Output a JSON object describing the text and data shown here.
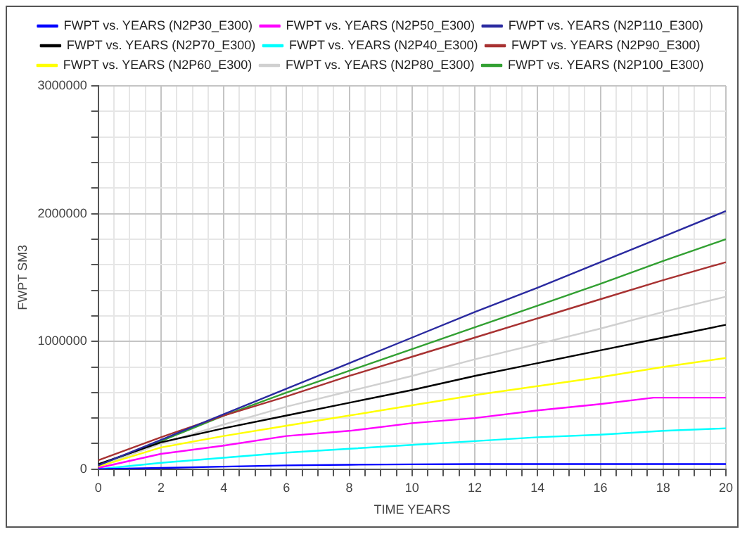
{
  "chart_data": {
    "type": "line",
    "xlabel": "TIME YEARS",
    "ylabel": "FWPT SM3",
    "xlim": [
      0,
      20
    ],
    "ylim": [
      0,
      3000000
    ],
    "xticks": [
      0,
      {
        "value": 0.5,
        "label": null
      },
      {
        "value": 1,
        "label": null
      },
      {
        "value": 1.5,
        "label": null
      },
      2,
      {
        "value": 2.5,
        "label": null
      },
      {
        "value": 3,
        "label": null
      },
      {
        "value": 3.5,
        "label": null
      },
      4,
      {
        "value": 4.5,
        "label": null
      },
      {
        "value": 5,
        "label": null
      },
      {
        "value": 5.5,
        "label": null
      },
      6,
      {
        "value": 6.5,
        "label": null
      },
      {
        "value": 7,
        "label": null
      },
      {
        "value": 7.5,
        "label": null
      },
      8,
      {
        "value": 8.5,
        "label": null
      },
      {
        "value": 9,
        "label": null
      },
      {
        "value": 9.5,
        "label": null
      },
      10,
      {
        "value": 10.5,
        "label": null
      },
      {
        "value": 11,
        "label": null
      },
      {
        "value": 11.5,
        "label": null
      },
      12,
      {
        "value": 12.5,
        "label": null
      },
      {
        "value": 13,
        "label": null
      },
      {
        "value": 13.5,
        "label": null
      },
      14,
      {
        "value": 14.5,
        "label": null
      },
      {
        "value": 15,
        "label": null
      },
      {
        "value": 15.5,
        "label": null
      },
      16,
      {
        "value": 16.5,
        "label": null
      },
      {
        "value": 17,
        "label": null
      },
      {
        "value": 17.5,
        "label": null
      },
      18,
      {
        "value": 18.5,
        "label": null
      },
      {
        "value": 19,
        "label": null
      },
      {
        "value": 19.5,
        "label": null
      },
      20
    ],
    "yticks": [
      0,
      {
        "value": 200000,
        "label": null
      },
      {
        "value": 400000,
        "label": null
      },
      {
        "value": 600000,
        "label": null
      },
      {
        "value": 800000,
        "label": null
      },
      1000000,
      {
        "value": 1200000,
        "label": null
      },
      {
        "value": 1400000,
        "label": null
      },
      {
        "value": 1600000,
        "label": null
      },
      {
        "value": 1800000,
        "label": null
      },
      2000000,
      {
        "value": 2200000,
        "label": null
      },
      {
        "value": 2400000,
        "label": null
      },
      {
        "value": 2600000,
        "label": null
      },
      {
        "value": 2800000,
        "label": null
      },
      3000000
    ],
    "grid": true,
    "legend": "top",
    "marker": "none",
    "line_style": "solid",
    "x": [
      0,
      2,
      4,
      6,
      8,
      10,
      12,
      14,
      16,
      18,
      20
    ],
    "series": [
      {
        "name": "FWPT vs. YEARS (N2P30_E300)",
        "color": "#0000ff",
        "values": [
          0,
          10000,
          20000,
          30000,
          35000,
          38000,
          40000,
          40000,
          40000,
          40000,
          40000
        ]
      },
      {
        "name": "FWPT vs. YEARS (N2P50_E300)",
        "color": "#ff00ff",
        "x": [
          0,
          2,
          4,
          6,
          8,
          10,
          12,
          14,
          16,
          17.7,
          20
        ],
        "values": [
          10000,
          120000,
          185000,
          260000,
          300000,
          360000,
          400000,
          460000,
          510000,
          560000,
          560000
        ]
      },
      {
        "name": "FWPT vs. YEARS (N2P110_E300)",
        "color": "#2a2aa0",
        "values": [
          30000,
          230000,
          430000,
          630000,
          830000,
          1030000,
          1230000,
          1420000,
          1620000,
          1820000,
          2020000
        ]
      },
      {
        "name": "FWPT vs. YEARS (N2P70_E300)",
        "color": "#000000",
        "values": [
          40000,
          210000,
          320000,
          420000,
          520000,
          620000,
          730000,
          830000,
          930000,
          1030000,
          1130000
        ]
      },
      {
        "name": "FWPT vs. YEARS (N2P40_E300)",
        "color": "#00ffff",
        "values": [
          0,
          50000,
          90000,
          130000,
          160000,
          190000,
          220000,
          250000,
          270000,
          300000,
          320000
        ]
      },
      {
        "name": "FWPT vs. YEARS (N2P90_E300)",
        "color": "#a83232",
        "values": [
          70000,
          250000,
          420000,
          570000,
          730000,
          880000,
          1030000,
          1180000,
          1330000,
          1480000,
          1620000
        ]
      },
      {
        "name": "FWPT vs. YEARS (N2P60_E300)",
        "color": "#ffff00",
        "values": [
          20000,
          170000,
          260000,
          340000,
          420000,
          500000,
          580000,
          650000,
          720000,
          800000,
          870000
        ]
      },
      {
        "name": "FWPT vs. YEARS (N2P80_E300)",
        "color": "#d0d0d0",
        "values": [
          20000,
          200000,
          350000,
          490000,
          610000,
          730000,
          860000,
          980000,
          1100000,
          1230000,
          1350000
        ]
      },
      {
        "name": "FWPT vs. YEARS (N2P100_E300)",
        "color": "#32a032",
        "values": [
          20000,
          220000,
          420000,
          600000,
          770000,
          940000,
          1110000,
          1280000,
          1450000,
          1630000,
          1800000
        ]
      }
    ]
  }
}
